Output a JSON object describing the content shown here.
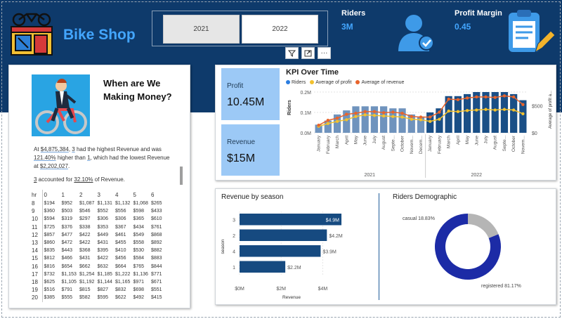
{
  "header": {
    "brand": "Bike Shop",
    "slicer": {
      "options": [
        "2021",
        "2022"
      ],
      "selected": "2021"
    },
    "kpis": {
      "riders_label": "Riders",
      "riders_value": "3M",
      "profit_margin_label": "Profit Margin",
      "profit_margin_value": "0.45"
    },
    "colors": {
      "band": "#0e3a6b",
      "accent": "#43a6ff"
    }
  },
  "visual_toolbar": {
    "icons": [
      "filter-icon",
      "focus-mode-icon",
      "more-options-icon"
    ],
    "more_label": "···"
  },
  "left_panel": {
    "title": "When are We Making Money?",
    "narrative": {
      "p1_a": "At ",
      "p1_value1": "$4,875,384",
      "p1_b": ", ",
      "p1_hour1": "3",
      "p1_c": " had the highest Revenue and was ",
      "p1_pct": "121.40%",
      "p1_d": " higher than ",
      "p1_hour2": "1",
      "p1_e": ", which had the lowest Revenue at ",
      "p1_value2": "$2,202,027",
      "p1_f": ".",
      "p2_hour": "3",
      "p2_a": " accounted for ",
      "p2_pct": "32.10%",
      "p2_b": " of Revenue."
    },
    "table": {
      "corner": "hr",
      "columns": [
        "0",
        "1",
        "2",
        "3",
        "4",
        "5",
        "6"
      ],
      "rows": [
        {
          "hr": "8",
          "v": [
            "$194",
            "$952",
            "$1,087",
            "$1,131",
            "$1,132",
            "$1,068",
            "$265"
          ]
        },
        {
          "hr": "9",
          "v": [
            "$360",
            "$503",
            "$546",
            "$552",
            "$556",
            "$598",
            "$433"
          ]
        },
        {
          "hr": "10",
          "v": [
            "$594",
            "$319",
            "$297",
            "$306",
            "$306",
            "$365",
            "$610"
          ]
        },
        {
          "hr": "11",
          "v": [
            "$725",
            "$376",
            "$338",
            "$353",
            "$367",
            "$434",
            "$761"
          ]
        },
        {
          "hr": "12",
          "v": [
            "$857",
            "$477",
            "$422",
            "$449",
            "$461",
            "$549",
            "$868"
          ]
        },
        {
          "hr": "13",
          "v": [
            "$860",
            "$472",
            "$422",
            "$431",
            "$455",
            "$558",
            "$892"
          ]
        },
        {
          "hr": "14",
          "v": [
            "$835",
            "$443",
            "$368",
            "$395",
            "$410",
            "$530",
            "$882"
          ]
        },
        {
          "hr": "15",
          "v": [
            "$812",
            "$466",
            "$431",
            "$422",
            "$456",
            "$584",
            "$883"
          ]
        },
        {
          "hr": "16",
          "v": [
            "$816",
            "$654",
            "$662",
            "$632",
            "$664",
            "$765",
            "$844"
          ]
        },
        {
          "hr": "17",
          "v": [
            "$732",
            "$1,153",
            "$1,254",
            "$1,185",
            "$1,222",
            "$1,136",
            "$771"
          ]
        },
        {
          "hr": "18",
          "v": [
            "$625",
            "$1,105",
            "$1,192",
            "$1,144",
            "$1,165",
            "$971",
            "$671"
          ]
        },
        {
          "hr": "19",
          "v": [
            "$516",
            "$791",
            "$815",
            "$827",
            "$832",
            "$698",
            "$551"
          ]
        },
        {
          "hr": "20",
          "v": [
            "$385",
            "$555",
            "$582",
            "$595",
            "$622",
            "$492",
            "$415"
          ]
        }
      ]
    }
  },
  "kpi_tiles": {
    "profit_label": "Profit",
    "profit_value": "10.45M",
    "revenue_label": "Revenue",
    "revenue_value": "$15M"
  },
  "kpi_over_time": {
    "title": "KPI Over Time",
    "legend": [
      "Riders",
      "Average of profit",
      "Average of revenue"
    ]
  },
  "revenue_by_season": {
    "title": "Revenue by season"
  },
  "riders_demographic": {
    "title": "Riders Demographic"
  },
  "chart_data": [
    {
      "type": "bar",
      "title": "KPI Over Time",
      "categories": [
        "January",
        "February",
        "March",
        "April",
        "May",
        "June",
        "July",
        "August",
        "Septe...",
        "October",
        "Novem...",
        "Decem...",
        "January",
        "February",
        "March",
        "April",
        "May",
        "June",
        "July",
        "August",
        "Septe...",
        "October",
        "Novem..."
      ],
      "year_groups": [
        {
          "label": "2021",
          "count": 12
        },
        {
          "label": "2022",
          "count": 11
        }
      ],
      "series": [
        {
          "name": "Riders",
          "axis": "left",
          "color": "#6f93bd",
          "color_2022": "#1a4f86",
          "values": [
            0.04,
            0.06,
            0.09,
            0.11,
            0.13,
            0.13,
            0.13,
            0.13,
            0.12,
            0.12,
            0.09,
            0.08,
            0.1,
            0.12,
            0.18,
            0.18,
            0.19,
            0.2,
            0.2,
            0.2,
            0.2,
            0.19,
            0.16
          ]
        },
        {
          "name": "Average of profit",
          "axis": "right",
          "color": "#f2c12e",
          "values": [
            120,
            170,
            210,
            240,
            300,
            330,
            320,
            310,
            300,
            290,
            250,
            240,
            210,
            250,
            400,
            390,
            410,
            420,
            430,
            420,
            430,
            420,
            350
          ]
        },
        {
          "name": "Average of revenue",
          "axis": "right",
          "color": "#e8642c",
          "values": [
            140,
            230,
            270,
            340,
            360,
            390,
            390,
            370,
            380,
            360,
            300,
            290,
            290,
            380,
            620,
            610,
            640,
            660,
            660,
            650,
            680,
            660,
            520
          ]
        }
      ],
      "ylabel": "Riders",
      "y2label": "Average of profit a...",
      "ylim": [
        0,
        0.2
      ],
      "y_ticks": [
        "0.0M",
        "0.1M",
        "0.2M"
      ],
      "y2lim": [
        0,
        750
      ],
      "y2_ticks": [
        "$0",
        "$500"
      ]
    },
    {
      "type": "bar",
      "orientation": "horizontal",
      "title": "Revenue by season",
      "categories": [
        "3",
        "2",
        "4",
        "1"
      ],
      "values": [
        4.9,
        4.2,
        3.9,
        2.2
      ],
      "labels": [
        "$4.9M",
        "$4.2M",
        "$3.9M",
        "$2.2M"
      ],
      "xlabel": "Revenue",
      "ylabel": "season",
      "xlim": [
        0,
        5
      ],
      "x_ticks": [
        "$0M",
        "$2M",
        "$4M"
      ],
      "color": "#164a80"
    },
    {
      "type": "pie",
      "title": "Riders Demographic",
      "donut": true,
      "categories": [
        "registered",
        "casual"
      ],
      "values": [
        81.17,
        18.83
      ],
      "labels": [
        "registered 81.17%",
        "casual 18.83%"
      ],
      "colors": [
        "#1c2ba6",
        "#b5b5b5"
      ]
    }
  ]
}
